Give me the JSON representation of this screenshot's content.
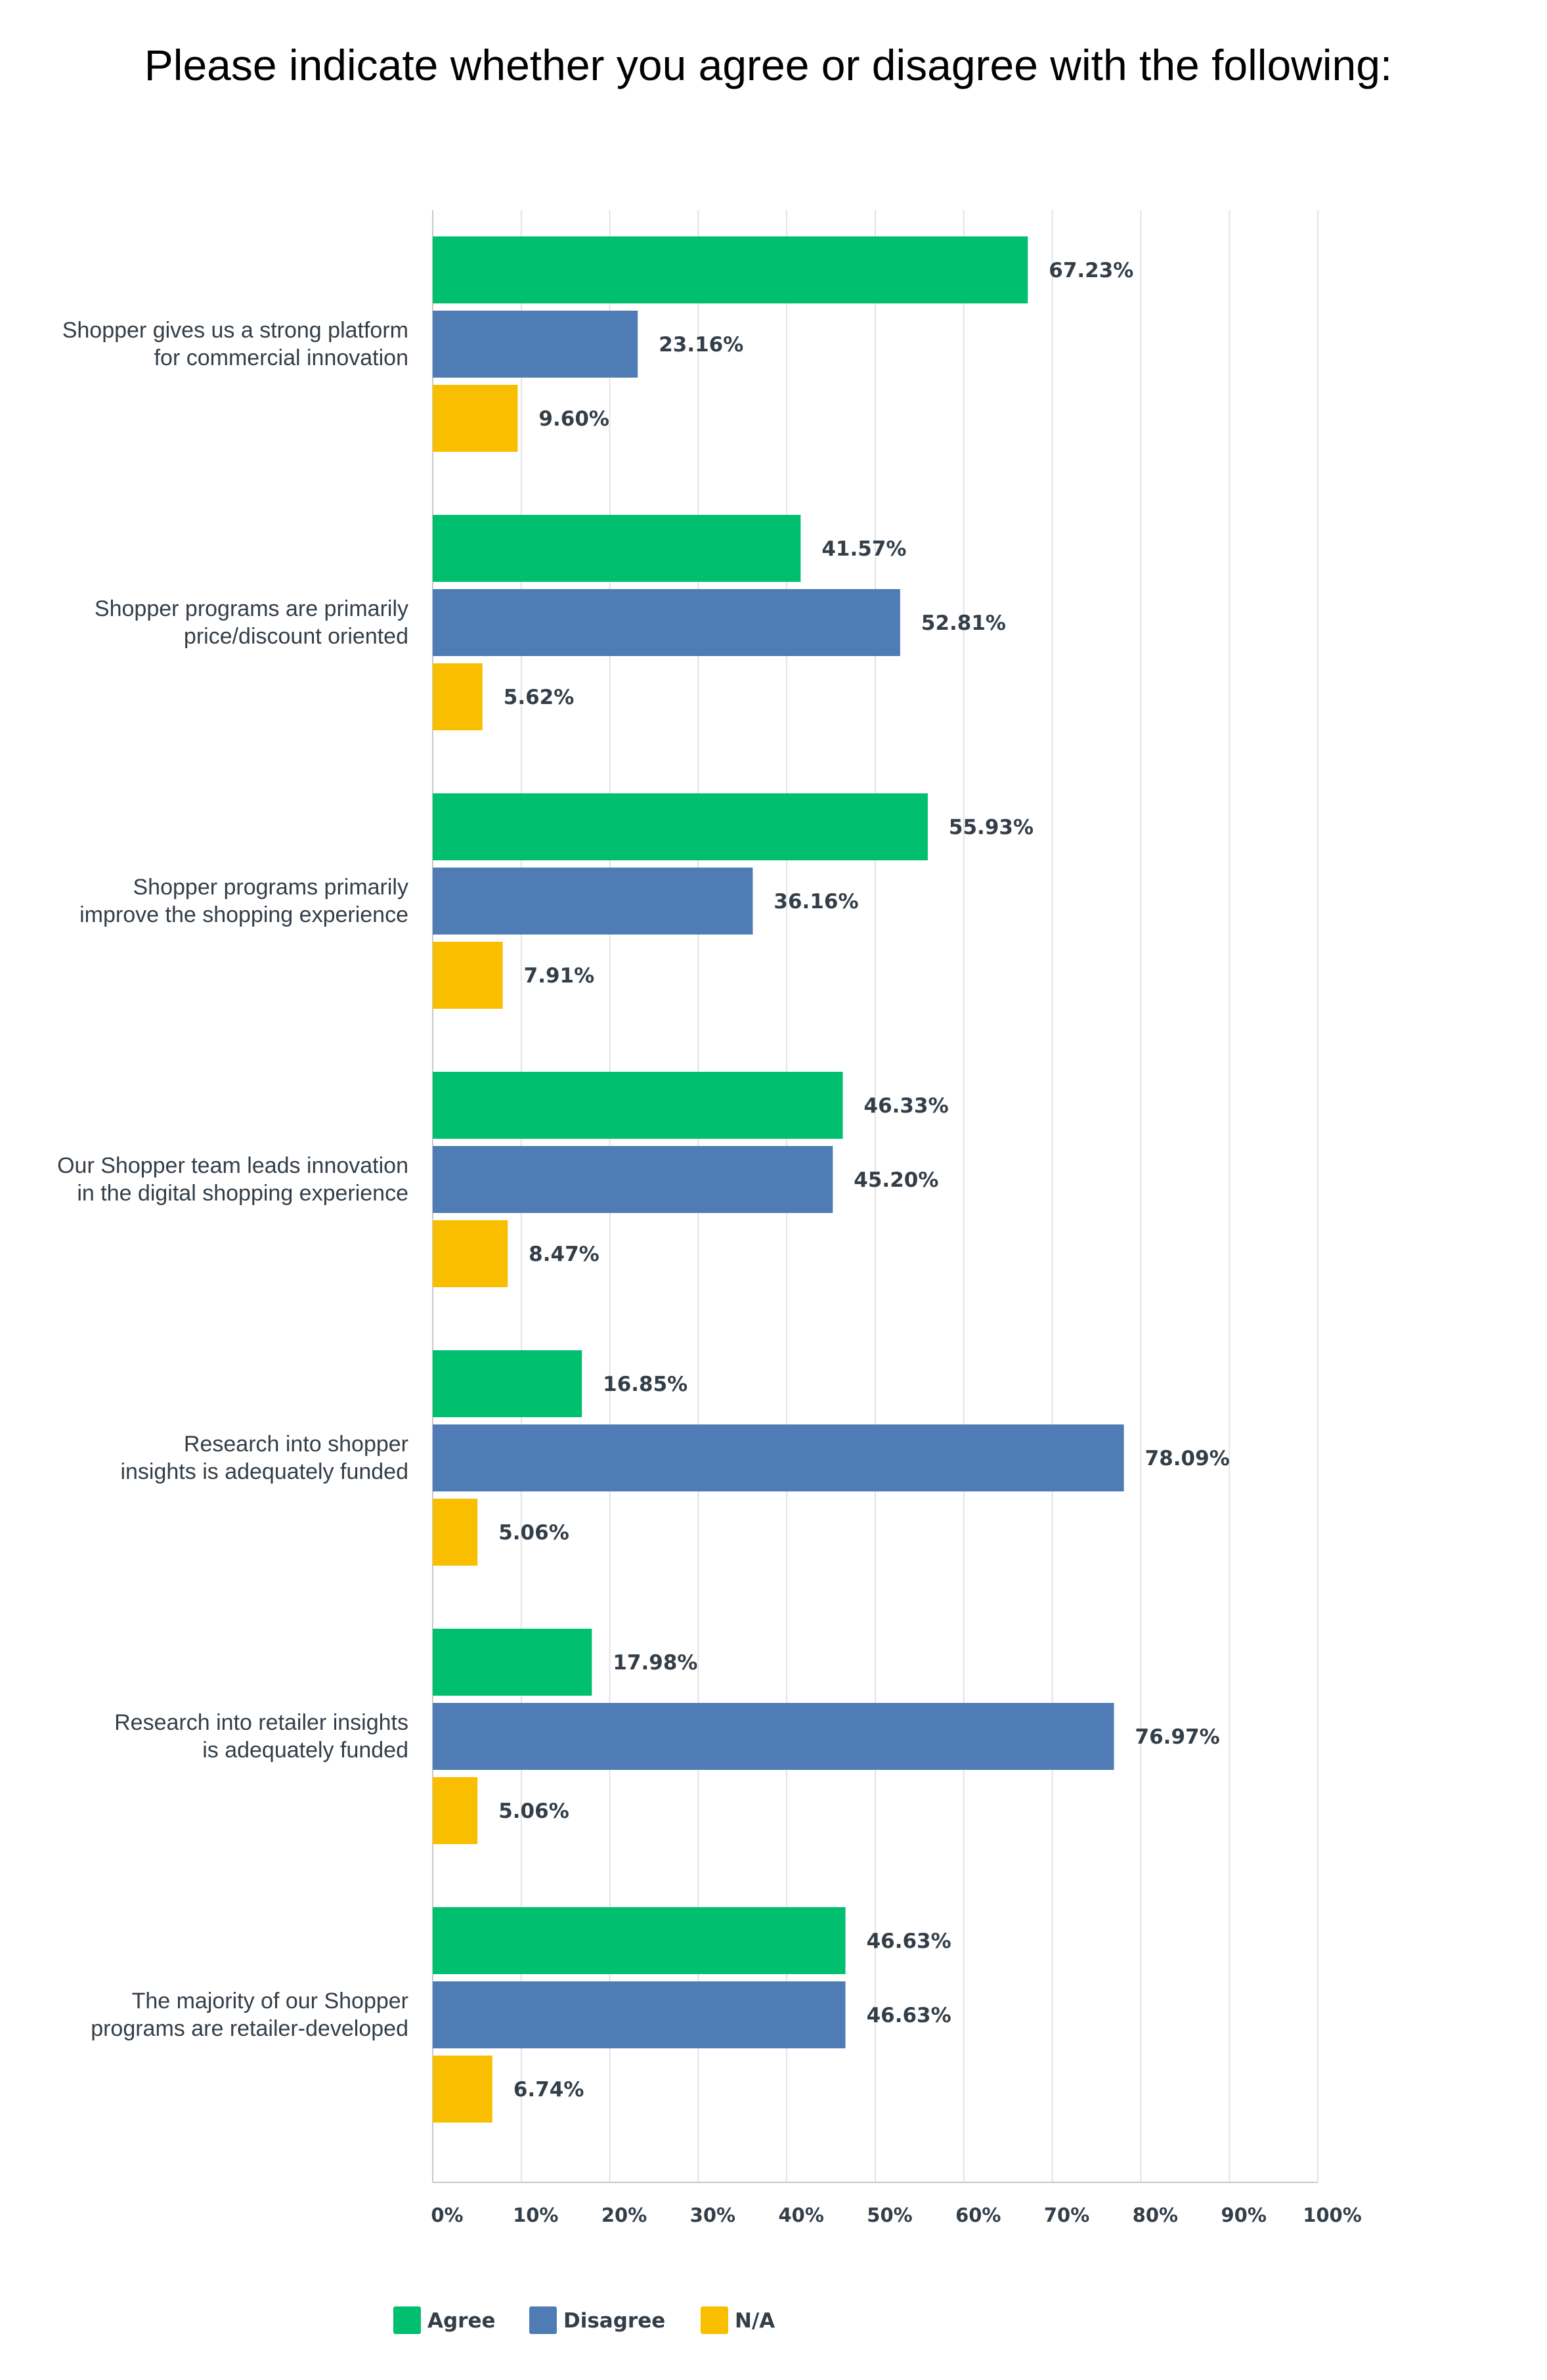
{
  "chart_data": {
    "type": "bar",
    "orientation": "horizontal",
    "title": "Please indicate whether you agree or disagree with the following:",
    "categories": [
      [
        "Shopper gives us a strong platform",
        "for commercial innovation"
      ],
      [
        "Shopper programs are primarily",
        "price/discount oriented"
      ],
      [
        "Shopper programs primarily",
        "improve the shopping experience"
      ],
      [
        "Our Shopper team leads innovation",
        "in the digital shopping experience"
      ],
      [
        "Research into shopper",
        "insights is adequately funded"
      ],
      [
        "Research into retailer insights",
        "is adequately funded"
      ],
      [
        "The majority of our Shopper",
        "programs are retailer-developed"
      ]
    ],
    "series": [
      {
        "name": "Agree",
        "color": "#00bf6f",
        "values": [
          67.23,
          41.57,
          55.93,
          46.33,
          16.85,
          17.98,
          46.63
        ],
        "labels": [
          "67.23%",
          "41.57%",
          "55.93%",
          "46.33%",
          "16.85%",
          "17.98%",
          "46.63%"
        ]
      },
      {
        "name": "Disagree",
        "color": "#507cb6",
        "values": [
          23.16,
          52.81,
          36.16,
          45.2,
          78.09,
          76.97,
          46.63
        ],
        "labels": [
          "23.16%",
          "52.81%",
          "36.16%",
          "45.20%",
          "78.09%",
          "76.97%",
          "46.63%"
        ]
      },
      {
        "name": "N/A",
        "color": "#f9be00",
        "values": [
          9.6,
          5.62,
          7.91,
          8.47,
          5.06,
          5.06,
          6.74
        ],
        "labels": [
          "9.60%",
          "5.62%",
          "7.91%",
          "8.47%",
          "5.06%",
          "5.06%",
          "6.74%"
        ]
      }
    ],
    "x_ticks": [
      "0%",
      "10%",
      "20%",
      "30%",
      "40%",
      "50%",
      "60%",
      "70%",
      "80%",
      "90%",
      "100%"
    ],
    "xlim": [
      0,
      100
    ],
    "xlabel": "",
    "ylabel": "",
    "grid": true,
    "legend_position": "bottom-left"
  }
}
